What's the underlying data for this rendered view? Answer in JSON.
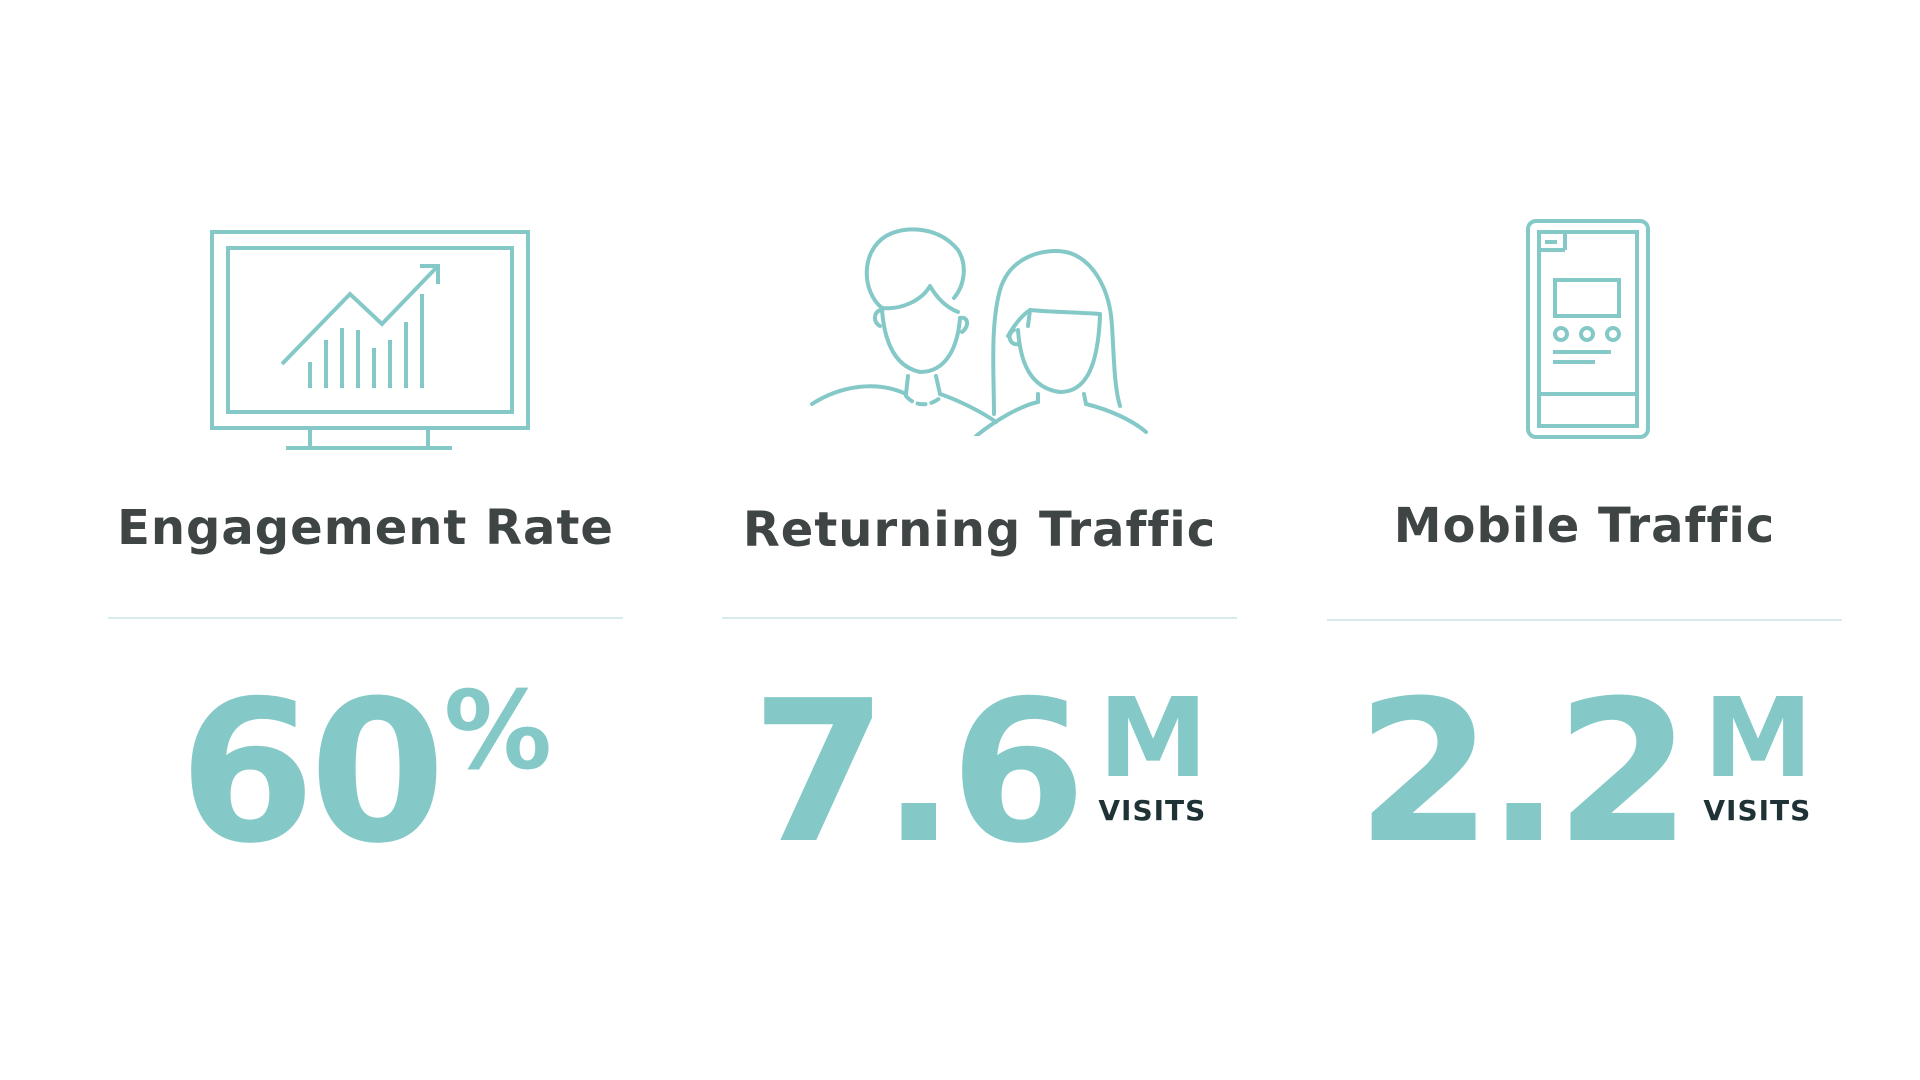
{
  "colors": {
    "accent": "#84c9c7",
    "title": "#3f4444",
    "caption": "#1f3337",
    "divider": "#d6ecec"
  },
  "stats": [
    {
      "icon": "monitor-chart-icon",
      "title": "Engagement Rate",
      "value": "60",
      "unit": "%",
      "caption": ""
    },
    {
      "icon": "people-icon",
      "title": "Returning Traffic",
      "value": "7.6",
      "unit": "M",
      "caption": "VISITS"
    },
    {
      "icon": "smartphone-icon",
      "title": "Mobile Traffic",
      "value": "2.2",
      "unit": "M",
      "caption": "VISITS"
    }
  ]
}
